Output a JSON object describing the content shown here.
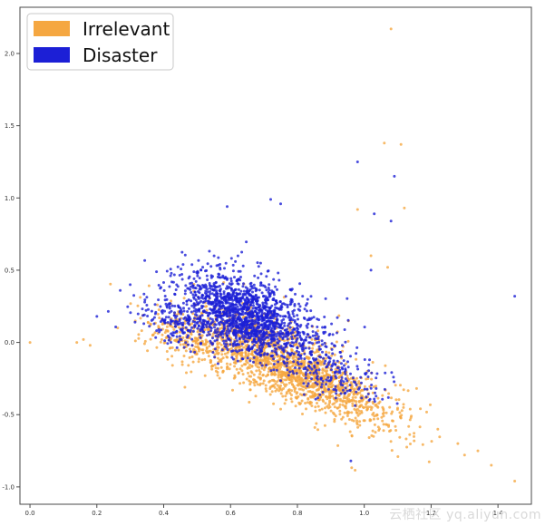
{
  "chart_data": {
    "type": "scatter",
    "title": "",
    "xlabel": "",
    "ylabel": "",
    "xlim": [
      -0.03,
      1.5
    ],
    "ylim": [
      -1.12,
      2.32
    ],
    "x_ticks": [
      "0.0",
      "0.2",
      "0.4",
      "0.6",
      "0.8",
      "1.0",
      "1.2",
      "1.4"
    ],
    "x_tick_values": [
      0.0,
      0.2,
      0.4,
      0.6,
      0.8,
      1.0,
      1.2,
      1.4
    ],
    "y_ticks": [
      "2.0",
      "1.5",
      "1.0",
      "0.5",
      "0.0",
      "-0.5",
      "-1.0"
    ],
    "y_tick_values": [
      2.0,
      1.5,
      1.0,
      0.5,
      0.0,
      -0.5,
      -1.0
    ],
    "grid": false,
    "legend_position": "top-left",
    "series": [
      {
        "name": "Irrelevant",
        "color": "#f5a741",
        "clusters": [
          {
            "cx": 0.68,
            "cy": -0.05,
            "sx": 0.11,
            "sy": 0.13,
            "n": 900
          },
          {
            "cx": 0.84,
            "cy": -0.25,
            "sx": 0.09,
            "sy": 0.1,
            "n": 650
          },
          {
            "cx": 1.0,
            "cy": -0.45,
            "sx": 0.1,
            "sy": 0.11,
            "n": 220
          },
          {
            "cx": 0.47,
            "cy": 0.03,
            "sx": 0.07,
            "sy": 0.09,
            "n": 200
          }
        ],
        "outliers": [
          [
            0.0,
            0.0
          ],
          [
            1.08,
            2.17
          ],
          [
            1.11,
            1.37
          ],
          [
            1.06,
            1.38
          ],
          [
            1.45,
            -0.96
          ],
          [
            1.38,
            -0.85
          ],
          [
            1.3,
            -0.78
          ],
          [
            1.28,
            -0.7
          ],
          [
            1.22,
            -0.6
          ],
          [
            0.98,
            0.92
          ],
          [
            1.02,
            0.6
          ],
          [
            1.07,
            0.52
          ],
          [
            1.12,
            0.93
          ],
          [
            0.16,
            0.02
          ],
          [
            0.18,
            -0.02
          ],
          [
            0.14,
            0.0
          ],
          [
            1.34,
            -0.75
          ]
        ]
      },
      {
        "name": "Disaster",
        "color": "#1c1fd6",
        "clusters": [
          {
            "cx": 0.62,
            "cy": 0.22,
            "sx": 0.09,
            "sy": 0.13,
            "n": 1100
          },
          {
            "cx": 0.72,
            "cy": 0.1,
            "sx": 0.1,
            "sy": 0.12,
            "n": 500
          },
          {
            "cx": 0.45,
            "cy": 0.12,
            "sx": 0.07,
            "sy": 0.08,
            "n": 180
          },
          {
            "cx": 0.9,
            "cy": -0.2,
            "sx": 0.08,
            "sy": 0.1,
            "n": 200
          }
        ],
        "outliers": [
          [
            0.98,
            1.25
          ],
          [
            1.09,
            1.15
          ],
          [
            1.03,
            0.89
          ],
          [
            1.08,
            0.84
          ],
          [
            1.45,
            0.32
          ],
          [
            0.72,
            0.99
          ],
          [
            0.75,
            0.96
          ],
          [
            0.59,
            0.94
          ],
          [
            1.02,
            0.5
          ],
          [
            0.96,
            -0.82
          ],
          [
            0.3,
            0.4
          ],
          [
            0.27,
            0.36
          ],
          [
            0.2,
            0.18
          ]
        ]
      }
    ]
  },
  "watermark": "云栖社区 yq.aliyun.com"
}
